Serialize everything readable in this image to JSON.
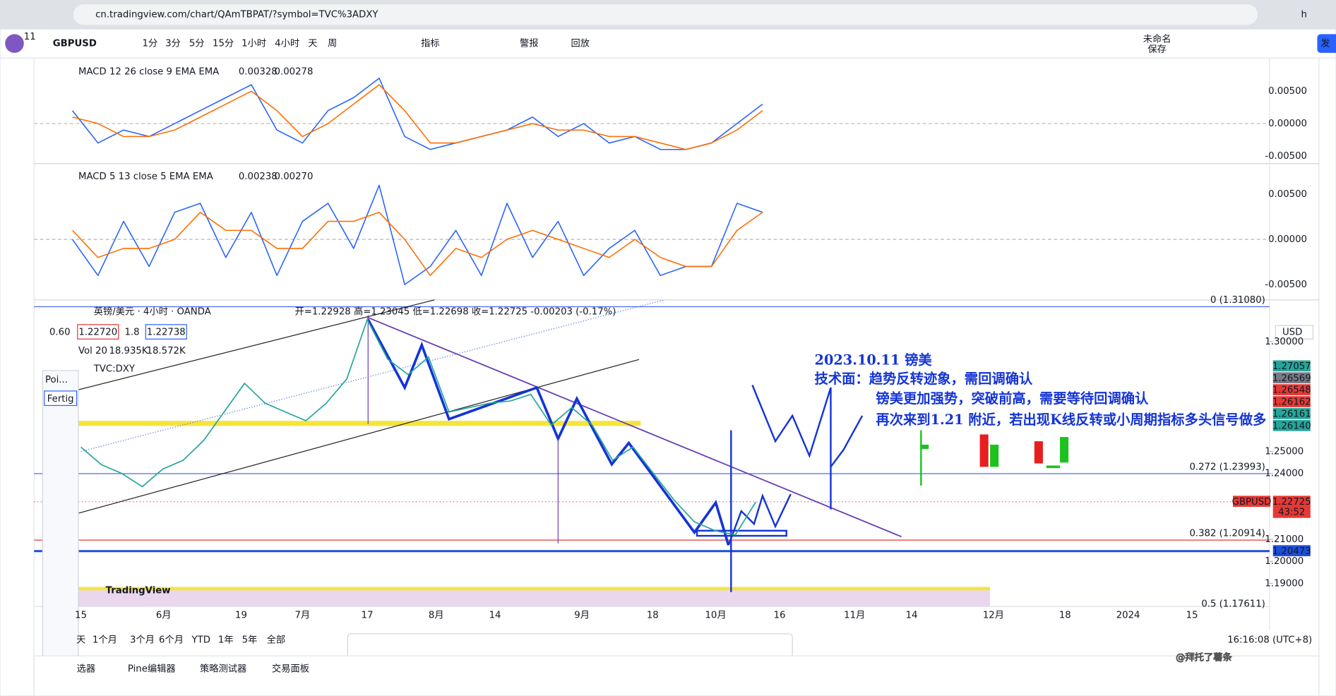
{
  "browser": {
    "url": "cn.tradingview.com/chart/QAmTBPAT/?symbol=TVC%3ADXY",
    "notification_count": "11",
    "avatar": "h"
  },
  "toolbar": {
    "symbol": "GBPUSD",
    "intervals": [
      "1分",
      "3分",
      "5分",
      "15分",
      "1小时",
      "4小时",
      "天",
      "周"
    ],
    "indicators": "指标",
    "alert": "警报",
    "replay": "回放",
    "layout_name": "未命名",
    "save": "保存",
    "publish": "发"
  },
  "macd_panes": [
    {
      "label": "MACD 12 26 close 9 EMA EMA",
      "macd_value": "0.00328",
      "signal_value": "0.00278",
      "ticks": [
        {
          "value": 0.005,
          "label": "0.00500"
        },
        {
          "value": 0,
          "label": "0.00000"
        },
        {
          "value": -0.005,
          "label": "-0.00500"
        }
      ],
      "macd": [
        0.002,
        -0.003,
        -0.001,
        -0.002,
        0.0,
        0.002,
        0.004,
        0.006,
        -0.001,
        -0.003,
        0.002,
        0.004,
        0.007,
        -0.002,
        -0.004,
        -0.003,
        -0.002,
        -0.001,
        0.001,
        -0.002,
        0.0,
        -0.003,
        -0.002,
        -0.004,
        -0.004,
        -0.003,
        0.0,
        0.003
      ],
      "signal": [
        0.001,
        0.0,
        -0.002,
        -0.002,
        -0.001,
        0.001,
        0.003,
        0.005,
        0.002,
        -0.002,
        0.0,
        0.003,
        0.006,
        0.002,
        -0.003,
        -0.003,
        -0.002,
        -0.001,
        0.0,
        -0.001,
        -0.001,
        -0.002,
        -0.002,
        -0.003,
        -0.004,
        -0.003,
        -0.001,
        0.002
      ]
    },
    {
      "label": "MACD 5 13 close 5 EMA EMA",
      "macd_value": "0.00238",
      "signal_value": "0.00270",
      "ticks": [
        {
          "value": 0.005,
          "label": "0.00500"
        },
        {
          "value": 0,
          "label": "0.00000"
        },
        {
          "value": -0.005,
          "label": "-0.00500"
        }
      ],
      "macd": [
        0.0,
        -0.004,
        0.002,
        -0.003,
        0.003,
        0.004,
        -0.002,
        0.003,
        -0.004,
        0.002,
        0.004,
        -0.001,
        0.006,
        -0.005,
        -0.003,
        0.001,
        -0.004,
        0.004,
        -0.002,
        0.002,
        -0.004,
        -0.001,
        0.001,
        -0.004,
        -0.003,
        -0.003,
        0.004,
        0.003
      ],
      "signal": [
        0.001,
        -0.002,
        -0.001,
        -0.001,
        0.0,
        0.003,
        0.001,
        0.001,
        -0.001,
        -0.001,
        0.002,
        0.002,
        0.003,
        0.0,
        -0.004,
        -0.001,
        -0.002,
        0.0,
        0.001,
        0.0,
        -0.001,
        -0.002,
        0.0,
        -0.002,
        -0.003,
        -0.003,
        0.001,
        0.003
      ]
    }
  ],
  "main": {
    "symbol_title": "英镑/美元 · 4小时 · OANDA",
    "ohlc": "开=1.22928 高=1.23045 低=1.22698 收=1.22725 -0.00203 (-0.17%)",
    "bid": "1.22720",
    "spread": "1.8",
    "ask": "1.22738",
    "left_value": "0.60",
    "volume_label": "Vol 20",
    "volume_values": [
      "18.935K",
      "18.572K"
    ],
    "compare": "TVC:DXY",
    "currency": "USD",
    "price_ticks": [
      {
        "value": 1.3,
        "label": "1.30000"
      },
      {
        "value": 1.25,
        "label": "1.25000"
      },
      {
        "value": 1.24,
        "label": "1.24000"
      },
      {
        "value": 1.21,
        "label": "1.21000"
      },
      {
        "value": 1.2,
        "label": "1.20000"
      },
      {
        "value": 1.19,
        "label": "1.19000"
      }
    ],
    "close": [
      1.252,
      1.244,
      1.24,
      1.234,
      1.242,
      1.246,
      1.255,
      1.268,
      1.281,
      1.272,
      1.268,
      1.264,
      1.272,
      1.283,
      1.31,
      1.292,
      1.285,
      1.293,
      1.268,
      1.27,
      1.272,
      1.273,
      1.276,
      1.262,
      1.27,
      1.262,
      1.246,
      1.252,
      1.24,
      1.228,
      1.218,
      1.214,
      1.212,
      1.227
    ],
    "price_labels": [
      "1.27057",
      "1.26569",
      "1.26548",
      "1.26162",
      "1.26161",
      "1.26140"
    ],
    "last_price": {
      "symbol": "GBPUSD",
      "price": "1.22725",
      "countdown": "43:52"
    },
    "blue_level": "1.20473",
    "fib_levels": [
      "0 (1.31080)",
      "0.272 (1.23993)",
      "0.382 (1.20914)",
      "0.5 (1.17611)"
    ],
    "x_ticks": [
      "15",
      "6月",
      "19",
      "7月",
      "17",
      "8月",
      "14",
      "9月",
      "18",
      "10月",
      "16",
      "11月",
      "14",
      "12月",
      "18",
      "2024",
      "15"
    ],
    "watermark": "TradingView"
  },
  "annotation": [
    "2023.10.11 镑美",
    "技术面：趋势反转迹象，需回调确认",
    "镑美更加强势，突破前高，需要等待回调确认",
    "再次来到1.21 附近，若出现K线反转或小周期指标多头信号做多"
  ],
  "panel": {
    "title": "Poi...",
    "button": "Fertig"
  },
  "bottom": {
    "ranges": [
      "天",
      "1个月",
      "3个月",
      "6个月",
      "YTD",
      "1年",
      "5年",
      "全部"
    ],
    "time": "16:16:08 (UTC+8)",
    "tabs": [
      "选器",
      "Pine编辑器",
      "策略测试器",
      "交易面板"
    ],
    "watermark": "@拜托了薯条"
  }
}
